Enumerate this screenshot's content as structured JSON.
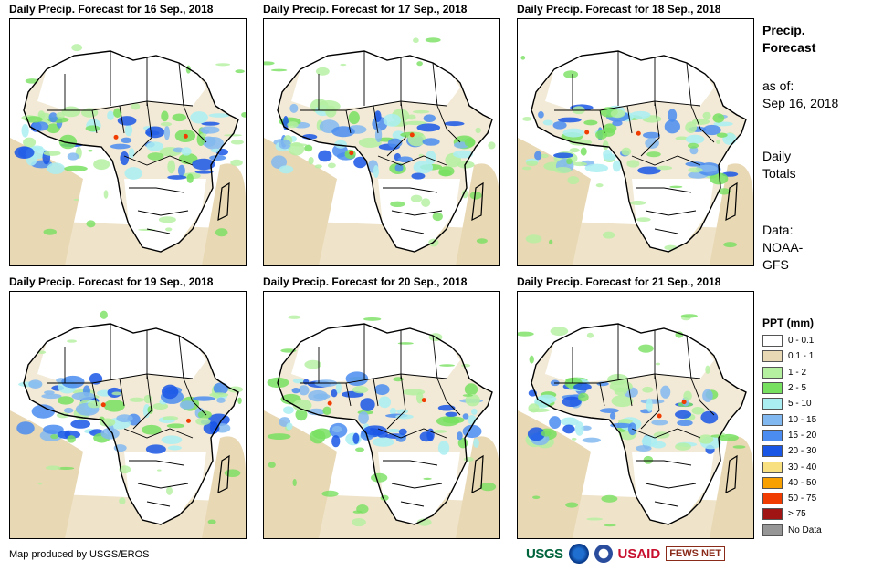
{
  "panels": [
    {
      "title": "Daily Precip. Forecast for 16 Sep., 2018"
    },
    {
      "title": "Daily Precip. Forecast for 17 Sep., 2018"
    },
    {
      "title": "Daily Precip. Forecast for 18 Sep., 2018"
    },
    {
      "title": "Daily Precip. Forecast for 19 Sep., 2018"
    },
    {
      "title": "Daily Precip. Forecast for 20 Sep., 2018"
    },
    {
      "title": "Daily Precip. Forecast for 21 Sep., 2018"
    }
  ],
  "side": {
    "heading_line1": "Precip.",
    "heading_line2": "Forecast",
    "asof_line1": "as of:",
    "asof_line2": "Sep 16, 2018",
    "daily_line1": "Daily",
    "daily_line2": "Totals",
    "data_line1": "Data:",
    "data_line2": "NOAA-",
    "data_line3": "GFS"
  },
  "legend": {
    "title": "PPT (mm)",
    "items": [
      {
        "label": "0 - 0.1",
        "color": "#ffffff"
      },
      {
        "label": "0.1 - 1",
        "color": "#e8d8b4"
      },
      {
        "label": "1 - 2",
        "color": "#b4f0a0"
      },
      {
        "label": "2 - 5",
        "color": "#78e060"
      },
      {
        "label": "5 - 10",
        "color": "#aaeef2"
      },
      {
        "label": "10 - 15",
        "color": "#82b8f0"
      },
      {
        "label": "15 - 20",
        "color": "#4a8cf0"
      },
      {
        "label": "20 - 30",
        "color": "#1a56e6"
      },
      {
        "label": "30 - 40",
        "color": "#f8e080"
      },
      {
        "label": "40 - 50",
        "color": "#f8a000"
      },
      {
        "label": "50 - 75",
        "color": "#f03c00"
      },
      {
        "label": "> 75",
        "color": "#a01414"
      },
      {
        "label": "No Data",
        "color": "#969696"
      }
    ]
  },
  "credit": "Map produced by USGS/EROS",
  "logos": {
    "usgs": "USGS",
    "usaid": "USAID",
    "fews": "FEWS NET"
  }
}
